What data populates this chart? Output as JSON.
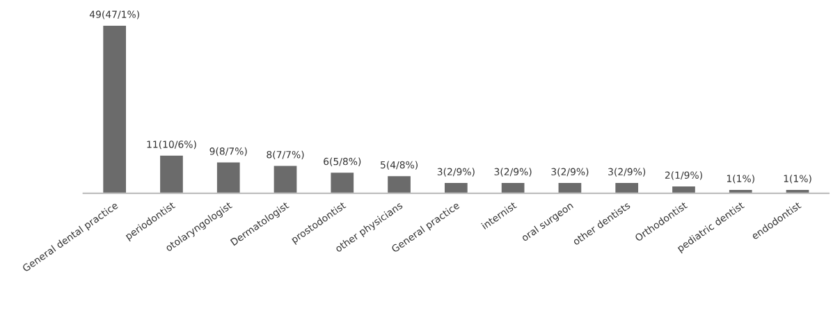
{
  "chart_data": {
    "type": "bar",
    "categories": [
      "General dental practice",
      "periodontist",
      "otolaryngologist",
      "Dermatologist",
      "prostodontist",
      "other physicians",
      "General practice",
      "internist",
      "oral surgeon",
      "other dentists",
      "Orthodontist",
      "pediatric dentist",
      "endodontist"
    ],
    "values": [
      49,
      11,
      9,
      8,
      6,
      5,
      3,
      3,
      3,
      3,
      2,
      1,
      1
    ],
    "value_labels": [
      "49(47/1%)",
      "11(10/6%)",
      "9(8/7%)",
      "8(7/7%)",
      "6(5/8%)",
      "5(4/8%)",
      "3(2/9%)",
      "3(2/9%)",
      "3(2/9%)",
      "3(2/9%)",
      "2(1/9%)",
      "1(1%)",
      "1(1%)"
    ],
    "color": "#6b6b6b",
    "grid": false,
    "legend": false
  }
}
